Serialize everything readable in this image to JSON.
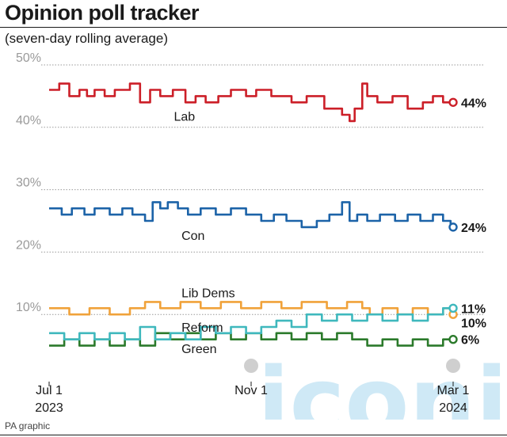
{
  "title": "Opinion poll tracker",
  "subtitle": "(seven-day rolling average)",
  "credit": "PA graphic",
  "watermark": "iconic",
  "chart_data": {
    "type": "line",
    "ylim": [
      0,
      50
    ],
    "yticks": [
      "50%",
      "40%",
      "30%",
      "20%",
      "10%"
    ],
    "ytick_values": [
      50,
      40,
      30,
      20,
      10
    ],
    "grid": true,
    "xlim": [
      0,
      8
    ],
    "x_unit": "months from Jul 1 2023",
    "xticks": [
      {
        "line1": "Jul 1",
        "line2": "2023",
        "x": 0
      },
      {
        "line1": "Nov 1",
        "line2": "",
        "x": 4
      },
      {
        "line1": "Mar 1",
        "line2": "2024",
        "x": 8
      }
    ],
    "series": [
      {
        "name": "Lab",
        "color": "#cc1f28",
        "end_label": "44%",
        "label_x": 2.0,
        "label_y": 41.8,
        "x": [
          0,
          0.2,
          0.2,
          0.4,
          0.4,
          0.6,
          0.6,
          0.75,
          0.75,
          0.9,
          0.9,
          1.1,
          1.1,
          1.3,
          1.3,
          1.6,
          1.6,
          1.8,
          1.8,
          2.0,
          2.0,
          2.2,
          2.2,
          2.45,
          2.45,
          2.7,
          2.7,
          2.9,
          2.9,
          3.1,
          3.1,
          3.35,
          3.35,
          3.6,
          3.6,
          3.9,
          3.9,
          4.1,
          4.1,
          4.4,
          4.4,
          4.8,
          4.8,
          5.1,
          5.1,
          5.45,
          5.45,
          5.8,
          5.8,
          5.95,
          5.95,
          6.05,
          6.05,
          6.2,
          6.2,
          6.3,
          6.3,
          6.5,
          6.5,
          6.8,
          6.8,
          7.1,
          7.1,
          7.4,
          7.4,
          7.6,
          7.6,
          7.8,
          7.8,
          7.95,
          7.95,
          8.0
        ],
        "y": [
          46,
          46,
          47,
          47,
          45,
          45,
          46,
          46,
          45,
          45,
          46,
          46,
          45,
          45,
          46,
          46,
          47,
          47,
          44,
          44,
          46,
          46,
          45,
          45,
          46,
          46,
          44,
          44,
          45,
          45,
          44,
          44,
          45,
          45,
          46,
          46,
          45,
          45,
          46,
          46,
          45,
          45,
          44,
          44,
          45,
          45,
          43,
          43,
          42,
          42,
          41,
          41,
          43,
          43,
          47,
          47,
          45,
          45,
          44,
          44,
          45,
          45,
          43,
          43,
          44,
          44,
          45,
          45,
          44,
          44,
          44,
          44
        ]
      },
      {
        "name": "Con",
        "color": "#1c63a8",
        "end_label": "24%",
        "label_x": 2.15,
        "label_y": 22.7,
        "x": [
          0,
          0.25,
          0.25,
          0.45,
          0.45,
          0.7,
          0.7,
          0.9,
          0.9,
          1.2,
          1.2,
          1.45,
          1.45,
          1.65,
          1.65,
          1.9,
          1.9,
          2.05,
          2.05,
          2.2,
          2.2,
          2.35,
          2.35,
          2.55,
          2.55,
          2.75,
          2.75,
          3.0,
          3.0,
          3.3,
          3.3,
          3.6,
          3.6,
          3.9,
          3.9,
          4.2,
          4.2,
          4.45,
          4.45,
          4.7,
          4.7,
          5.0,
          5.0,
          5.3,
          5.3,
          5.55,
          5.55,
          5.8,
          5.8,
          5.95,
          5.95,
          6.1,
          6.1,
          6.3,
          6.3,
          6.55,
          6.55,
          6.85,
          6.85,
          7.1,
          7.1,
          7.35,
          7.35,
          7.6,
          7.6,
          7.8,
          7.8,
          7.95,
          7.95,
          8.0
        ],
        "y": [
          27,
          27,
          26,
          26,
          27,
          27,
          26,
          26,
          27,
          27,
          26,
          26,
          27,
          27,
          26,
          26,
          25,
          25,
          28,
          28,
          27,
          27,
          28,
          28,
          27,
          27,
          26,
          26,
          27,
          27,
          26,
          26,
          27,
          27,
          26,
          26,
          25,
          25,
          26,
          26,
          25,
          25,
          24,
          24,
          25,
          25,
          26,
          26,
          28,
          28,
          25,
          25,
          26,
          26,
          25,
          25,
          26,
          26,
          25,
          25,
          26,
          26,
          25,
          25,
          26,
          26,
          25,
          25,
          24,
          24
        ]
      },
      {
        "name": "Lib Dems",
        "color": "#f0a23a",
        "end_label": "10%",
        "label_x": 2.15,
        "label_y": 13.5,
        "x": [
          0,
          0.4,
          0.4,
          0.8,
          0.8,
          1.2,
          1.2,
          1.6,
          1.6,
          1.9,
          1.9,
          2.2,
          2.2,
          2.6,
          2.6,
          3.0,
          3.0,
          3.4,
          3.4,
          3.8,
          3.8,
          4.2,
          4.2,
          4.6,
          4.6,
          5.0,
          5.0,
          5.5,
          5.5,
          5.9,
          5.9,
          6.2,
          6.2,
          6.35,
          6.35,
          6.6,
          6.6,
          6.9,
          6.9,
          7.2,
          7.2,
          7.5,
          7.5,
          7.8,
          7.8,
          7.95,
          7.95,
          8.0
        ],
        "y": [
          11,
          11,
          10,
          10,
          11,
          11,
          10,
          10,
          11,
          11,
          12,
          12,
          11,
          11,
          12,
          12,
          11,
          11,
          12,
          12,
          11,
          11,
          12,
          12,
          11,
          11,
          12,
          12,
          11,
          11,
          12,
          12,
          11,
          11,
          10,
          10,
          11,
          11,
          10,
          10,
          11,
          11,
          10,
          10,
          11,
          11,
          10,
          10
        ]
      },
      {
        "name": "Reform",
        "color": "#3fb8bd",
        "end_label": "11%",
        "label_x": 2.15,
        "label_y": 8.0,
        "x": [
          0,
          0.3,
          0.3,
          0.6,
          0.6,
          0.9,
          0.9,
          1.2,
          1.2,
          1.5,
          1.5,
          1.8,
          1.8,
          2.1,
          2.1,
          2.4,
          2.4,
          2.7,
          2.7,
          3.0,
          3.0,
          3.3,
          3.3,
          3.6,
          3.6,
          3.9,
          3.9,
          4.2,
          4.2,
          4.5,
          4.5,
          4.8,
          4.8,
          5.1,
          5.1,
          5.4,
          5.4,
          5.7,
          5.7,
          6.0,
          6.0,
          6.3,
          6.3,
          6.6,
          6.6,
          6.9,
          6.9,
          7.2,
          7.2,
          7.5,
          7.5,
          7.8,
          7.8,
          7.95,
          7.95,
          8.0
        ],
        "y": [
          7,
          7,
          6,
          6,
          7,
          7,
          6,
          6,
          7,
          7,
          6,
          6,
          8,
          8,
          6,
          6,
          7,
          7,
          6,
          6,
          8,
          8,
          7,
          7,
          8,
          8,
          7,
          7,
          8,
          8,
          9,
          9,
          8,
          8,
          10,
          10,
          9,
          9,
          10,
          10,
          9,
          9,
          10,
          10,
          9,
          9,
          10,
          10,
          9,
          9,
          10,
          10,
          11,
          11,
          11,
          11
        ]
      },
      {
        "name": "Green",
        "color": "#2b7a2b",
        "end_label": "6%",
        "label_x": 2.15,
        "label_y": 4.6,
        "x": [
          0,
          0.3,
          0.3,
          0.6,
          0.6,
          0.9,
          0.9,
          1.2,
          1.2,
          1.5,
          1.5,
          1.8,
          1.8,
          2.1,
          2.1,
          2.4,
          2.4,
          2.7,
          2.7,
          3.0,
          3.0,
          3.3,
          3.3,
          3.6,
          3.6,
          3.9,
          3.9,
          4.2,
          4.2,
          4.5,
          4.5,
          4.8,
          4.8,
          5.1,
          5.1,
          5.4,
          5.4,
          5.7,
          5.7,
          6.0,
          6.0,
          6.3,
          6.3,
          6.6,
          6.6,
          6.9,
          6.9,
          7.2,
          7.2,
          7.5,
          7.5,
          7.8,
          7.8,
          7.95,
          7.95,
          8.0
        ],
        "y": [
          5,
          5,
          6,
          6,
          5,
          5,
          6,
          6,
          5,
          5,
          6,
          6,
          5,
          5,
          7,
          7,
          6,
          6,
          7,
          7,
          6,
          6,
          7,
          7,
          6,
          6,
          7,
          7,
          6,
          6,
          7,
          7,
          6,
          6,
          7,
          7,
          6,
          6,
          7,
          7,
          6,
          6,
          5,
          5,
          6,
          6,
          5,
          5,
          6,
          6,
          5,
          5,
          6,
          6,
          6,
          6
        ]
      }
    ]
  }
}
